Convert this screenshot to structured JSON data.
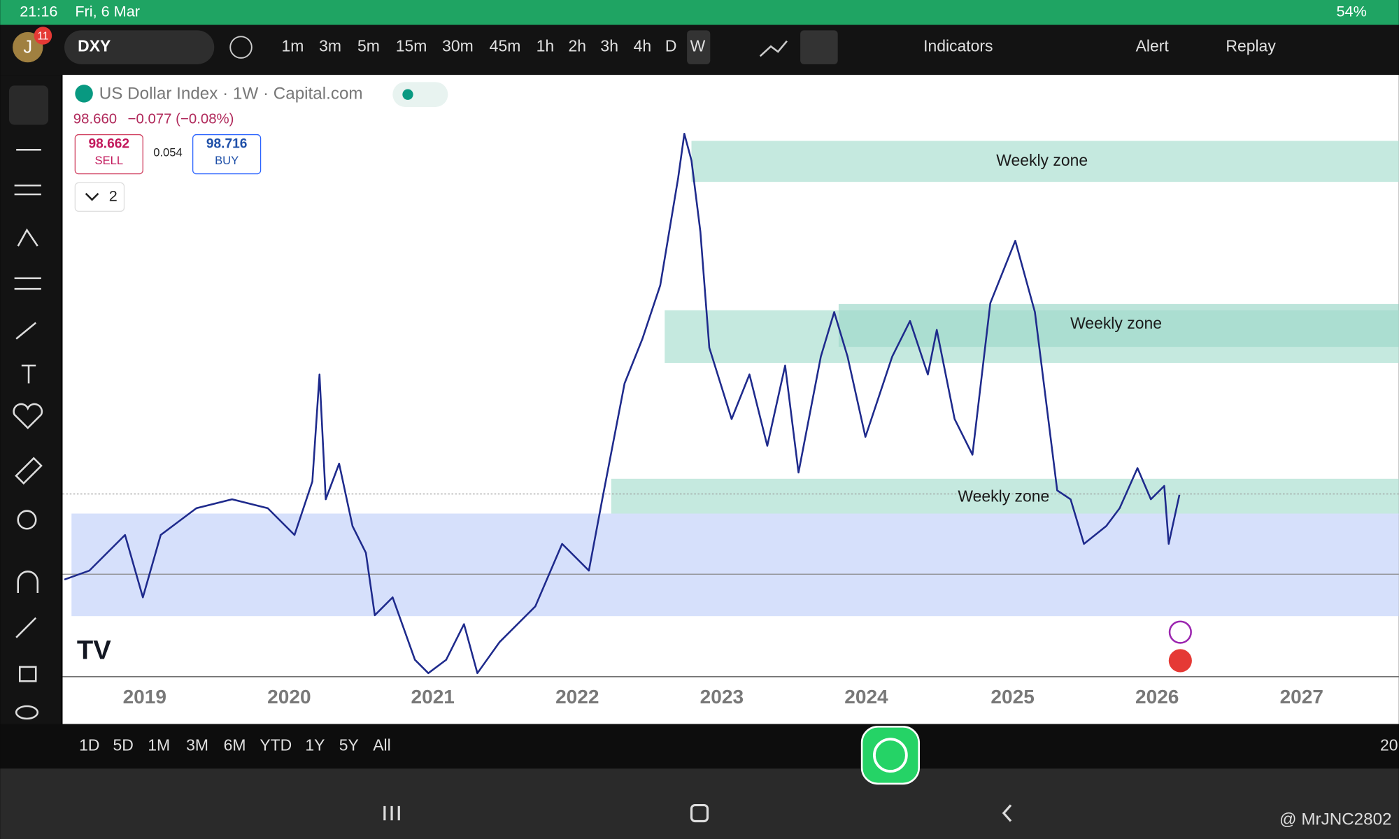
{
  "status_bar": {
    "time": "21:16",
    "date": "Fri, 6 Mar",
    "battery": "54%"
  },
  "toolbar": {
    "avatar": "J",
    "badge": "11",
    "symbol": "DXY",
    "intervals": [
      "1m",
      "3m",
      "5m",
      "15m",
      "30m",
      "45m",
      "1h",
      "2h",
      "3h",
      "4h",
      "D",
      "W"
    ],
    "indicators": "Indicators",
    "alert": "Alert",
    "replay": "Replay"
  },
  "chart": {
    "title": "US Dollar Index · 1W · Capital.com",
    "price": "98.660",
    "change": "−0.077 (−0.08%)",
    "sell_price": "98.662",
    "sell": "SELL",
    "spread": "0.054",
    "buy_price": "98.716",
    "buy": "BUY",
    "layers": "2",
    "zones": [
      "Weekly zone",
      "Weekly zone",
      "Weekly zone"
    ],
    "x_labels": [
      "2019",
      "2020",
      "2021",
      "2022",
      "2023",
      "2024",
      "2025",
      "2026",
      "2027"
    ]
  },
  "ranges": [
    "1D",
    "5D",
    "1M",
    "3M",
    "6M",
    "YTD",
    "1Y",
    "5Y",
    "All"
  ],
  "right_edge": "20",
  "watermark": "@ MrJNC2802"
}
